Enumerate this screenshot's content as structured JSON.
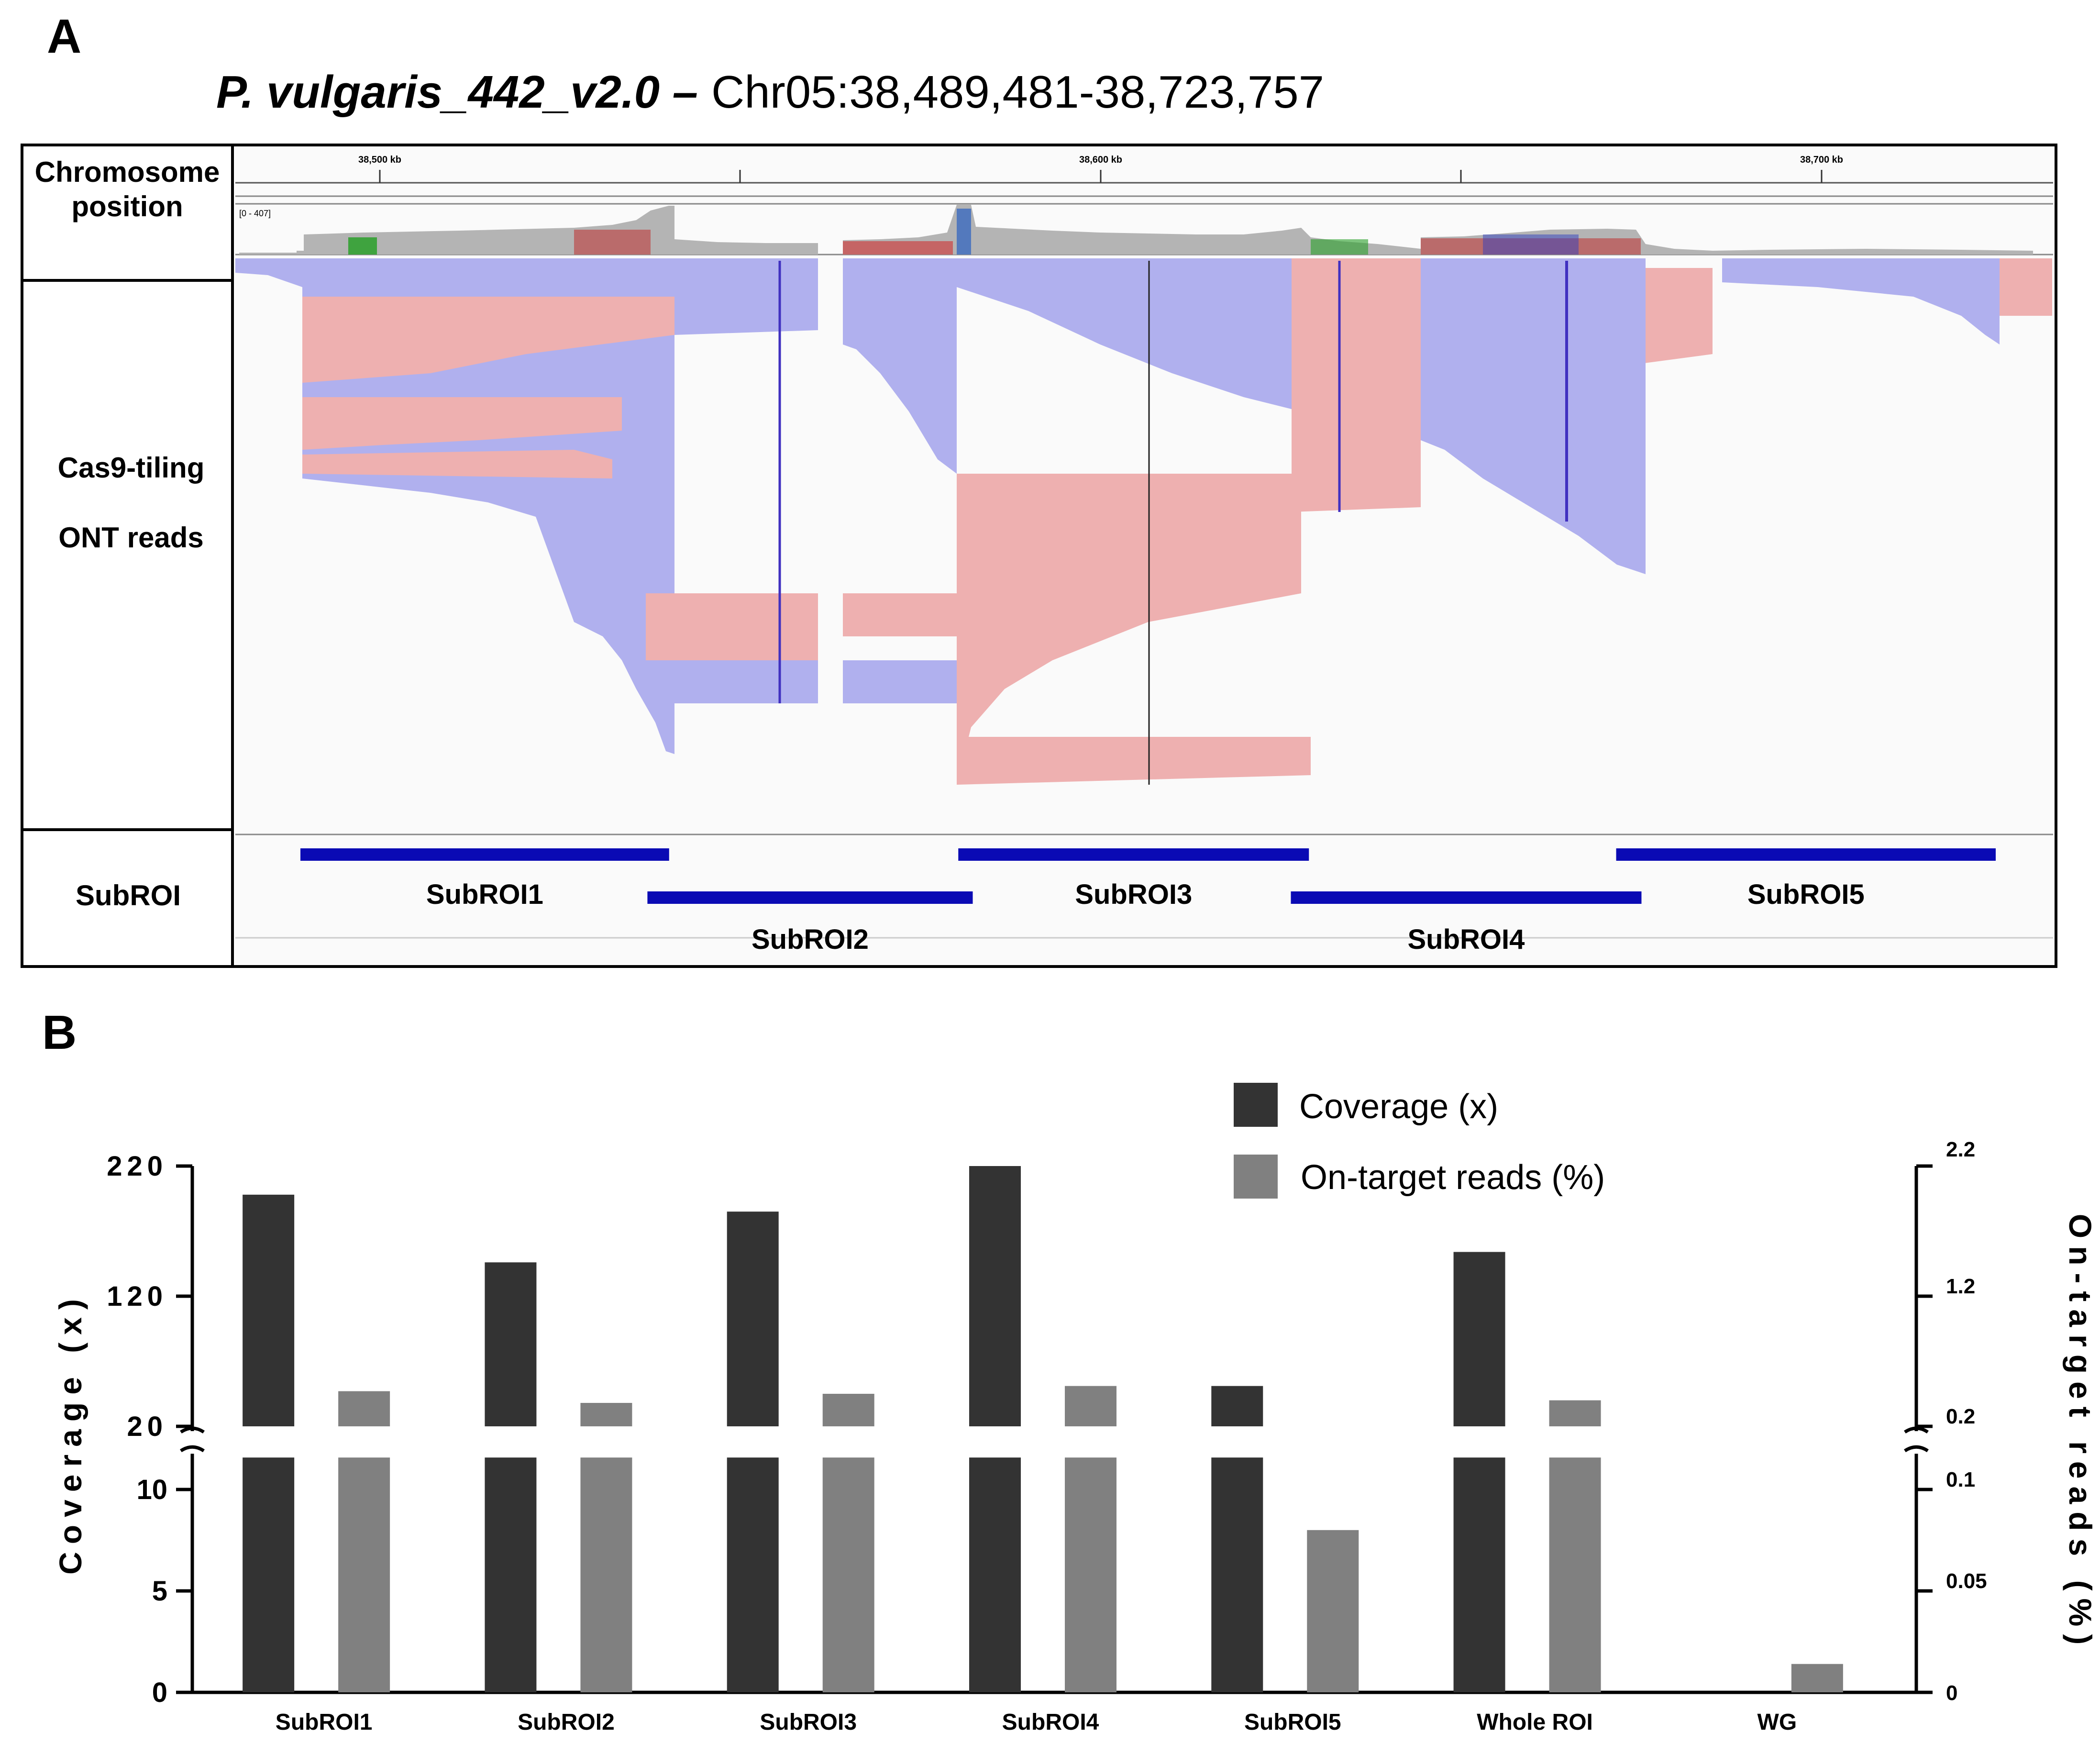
{
  "panel_a": {
    "letter": "A",
    "title_species": "P. vulgaris",
    "title_assembly": "_442_v2.0 –",
    "title_region": "Chr05:38,489,481-38,723,757",
    "labels": {
      "chrom_line1": "Chromosome",
      "chrom_line2": "position",
      "reads_line1": "Cas9-tiling",
      "reads_line2": "ONT reads",
      "subroi": "SubROI"
    },
    "ruler_ticks": [
      "38,500 kb",
      "38,600 kb",
      "38,700 kb"
    ],
    "coverage_range": "[0 - 407]",
    "subrois": [
      {
        "name": "SubROI1",
        "start_kb": 38489,
        "end_kb": 38540,
        "lane": 0
      },
      {
        "name": "SubROI2",
        "start_kb": 38537,
        "end_kb": 38582,
        "lane": 1
      },
      {
        "name": "SubROI3",
        "start_kb": 38580,
        "end_kb": 38628.5,
        "lane": 0
      },
      {
        "name": "SubROI4",
        "start_kb": 38626,
        "end_kb": 38674.5,
        "lane": 1
      },
      {
        "name": "SubROI5",
        "start_kb": 38671,
        "end_kb": 38723.5,
        "lane": 0
      }
    ],
    "colors": {
      "forward_read": "#b0b0ee",
      "reverse_read": "#eeb0b0",
      "coverage": "#b4b4b4",
      "subroi_bar": "#0a0ab4"
    }
  },
  "panel_b": {
    "letter": "B",
    "legend": {
      "coverage": "Coverage (x)",
      "on_target": "On-target reads (%)"
    },
    "left_axis_title": "Coverage (x)",
    "right_axis_title": "On-target reads (%)",
    "left_ticks_top": [
      "220",
      "120",
      "20"
    ],
    "left_ticks_bottom": [
      "10",
      "5",
      "0"
    ],
    "right_ticks_top": [
      "2.2",
      "1.2",
      "0.2"
    ],
    "right_ticks_bottom": [
      "0.1",
      "0.05",
      "0"
    ],
    "colors": {
      "coverage": "#333333",
      "on_target": "#808080"
    }
  },
  "chart_data": {
    "type": "bar",
    "title": "",
    "categories": [
      "SubROI1",
      "SubROI2",
      "SubROI3",
      "SubROI4",
      "SubROI5",
      "Whole ROI",
      "WG"
    ],
    "series": [
      {
        "name": "Coverage (x)",
        "axis": "left",
        "values": [
          198,
          146,
          185,
          220,
          51,
          154,
          null
        ]
      },
      {
        "name": "On-target reads (%)",
        "axis": "right",
        "values": [
          0.47,
          0.38,
          0.45,
          0.51,
          0.08,
          0.4,
          0.014
        ]
      }
    ],
    "xlabel": "",
    "ylabel": "Coverage (x)",
    "y2label": "On-target reads (%)",
    "y_break": {
      "lower": [
        0,
        12
      ],
      "upper": [
        20,
        220
      ]
    },
    "y2_break": {
      "lower": [
        0,
        0.12
      ],
      "upper": [
        0.2,
        2.2
      ]
    }
  }
}
